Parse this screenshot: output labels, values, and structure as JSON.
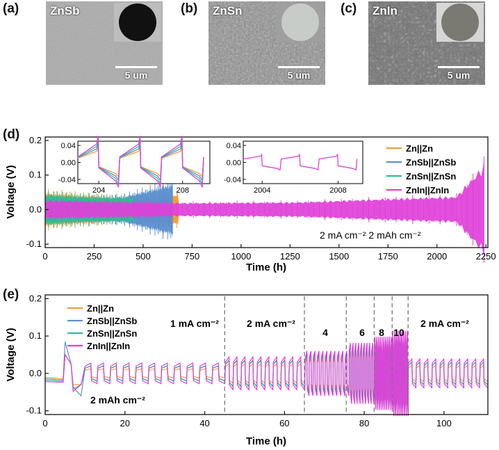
{
  "panels": {
    "a": {
      "label": "(a)",
      "material": "ZnSb",
      "scale_bar": "5 um"
    },
    "b": {
      "label": "(b)",
      "material": "ZnSn",
      "scale_bar": "5 um"
    },
    "c": {
      "label": "(c)",
      "material": "ZnIn",
      "scale_bar": "5 um"
    },
    "d": {
      "label": "(d)",
      "condition": "2 mA cm⁻² 2 mAh cm⁻²"
    },
    "e": {
      "label": "(e)",
      "capacity_label": "2 mAh cm⁻²"
    }
  },
  "colors": {
    "Zn||Zn": "#f39c34",
    "ZnSb||ZnSb": "#5b8fd0",
    "ZnSn||ZnSn": "#2fbd95",
    "ZnIn||ZnIn": "#e040d9",
    "sem_a": "#a9a9a9",
    "sem_b": "#8e8e8e",
    "sem_c": "#7c7c7c",
    "disk_a": "#111111",
    "disk_b": "#c8ccc8",
    "disk_c": "#7a7a72"
  },
  "chart_data": [
    {
      "id": "d",
      "type": "line",
      "xlabel": "Time (h)",
      "ylabel": "Voltage (V)",
      "xlim": [
        0,
        2260
      ],
      "ylim": [
        -0.11,
        0.21
      ],
      "xticks": [
        0,
        250,
        500,
        750,
        1000,
        1250,
        1500,
        1750,
        2000,
        2250
      ],
      "yticks": [
        -0.1,
        0.0,
        0.1,
        0.2
      ],
      "legend": "top-right",
      "series": [
        {
          "name": "Zn||Zn",
          "color": "#f39c34",
          "end_h": 680,
          "amplitude": [
            [
              0,
              0.045
            ],
            [
              150,
              0.04
            ],
            [
              400,
              0.03
            ],
            [
              680,
              0.04
            ]
          ]
        },
        {
          "name": "ZnSb||ZnSb",
          "color": "#5b8fd0",
          "end_h": 650,
          "amplitude": [
            [
              0,
              0.03
            ],
            [
              200,
              0.028
            ],
            [
              400,
              0.035
            ],
            [
              650,
              0.07
            ]
          ]
        },
        {
          "name": "ZnSn||ZnSn",
          "color": "#2fbd95",
          "end_h": 450,
          "amplitude": [
            [
              0,
              0.04
            ],
            [
              200,
              0.035
            ],
            [
              450,
              0.03
            ]
          ]
        },
        {
          "name": "ZnIn||ZnIn",
          "color": "#e040d9",
          "end_h": 2240,
          "amplitude": [
            [
              0,
              0.025
            ],
            [
              700,
              0.018
            ],
            [
              1300,
              0.02
            ],
            [
              1700,
              0.028
            ],
            [
              2100,
              0.035
            ],
            [
              2240,
              0.12
            ]
          ]
        }
      ],
      "insets": [
        {
          "xlim": [
            203,
            209.3
          ],
          "xticks": [
            204,
            208
          ],
          "ylim": [
            -0.05,
            0.05
          ],
          "yticks": [
            -0.04,
            0.0,
            0.04
          ],
          "series": [
            "Zn||Zn",
            "ZnSb||ZnSb",
            "ZnSn||ZnSn",
            "ZnIn||ZnIn"
          ]
        },
        {
          "xlim": [
            2003,
            2009.3
          ],
          "xticks": [
            2004,
            2008
          ],
          "ylim": [
            -0.05,
            0.05
          ],
          "yticks": [
            -0.04,
            0.0,
            0.04
          ],
          "series": [
            "ZnIn||ZnIn"
          ]
        }
      ]
    },
    {
      "id": "e",
      "type": "line",
      "xlabel": "Time (h)",
      "ylabel": "Voltage (V)",
      "xlim": [
        0,
        111
      ],
      "ylim": [
        -0.11,
        0.21
      ],
      "xticks": [
        0,
        20,
        40,
        60,
        80,
        100
      ],
      "yticks": [
        -0.1,
        0.0,
        0.1,
        0.2
      ],
      "legend": "top-left",
      "rate_segments": [
        {
          "label": "1 mA cm⁻²",
          "start": 10,
          "end": 45
        },
        {
          "label": "2 mA cm⁻²",
          "start": 45,
          "end": 65
        },
        {
          "label": "4",
          "start": 65,
          "end": 75.5
        },
        {
          "label": "6",
          "start": 75.5,
          "end": 82.5
        },
        {
          "label": "8",
          "start": 82.5,
          "end": 87
        },
        {
          "label": "10",
          "start": 87,
          "end": 91
        },
        {
          "label": "2 mA cm⁻²",
          "start": 91,
          "end": 111
        }
      ],
      "segment_dividers": [
        45,
        65,
        75.5,
        82.5,
        87,
        91
      ],
      "segment_amplitude": [
        0.02,
        0.035,
        0.05,
        0.07,
        0.085,
        0.1,
        0.03
      ],
      "series": [
        {
          "name": "Zn||Zn",
          "color": "#f39c34"
        },
        {
          "name": "ZnSb||ZnSb",
          "color": "#5b8fd0"
        },
        {
          "name": "ZnSn||ZnSn",
          "color": "#2fbd95"
        },
        {
          "name": "ZnIn||ZnIn",
          "color": "#e040d9"
        }
      ]
    }
  ]
}
